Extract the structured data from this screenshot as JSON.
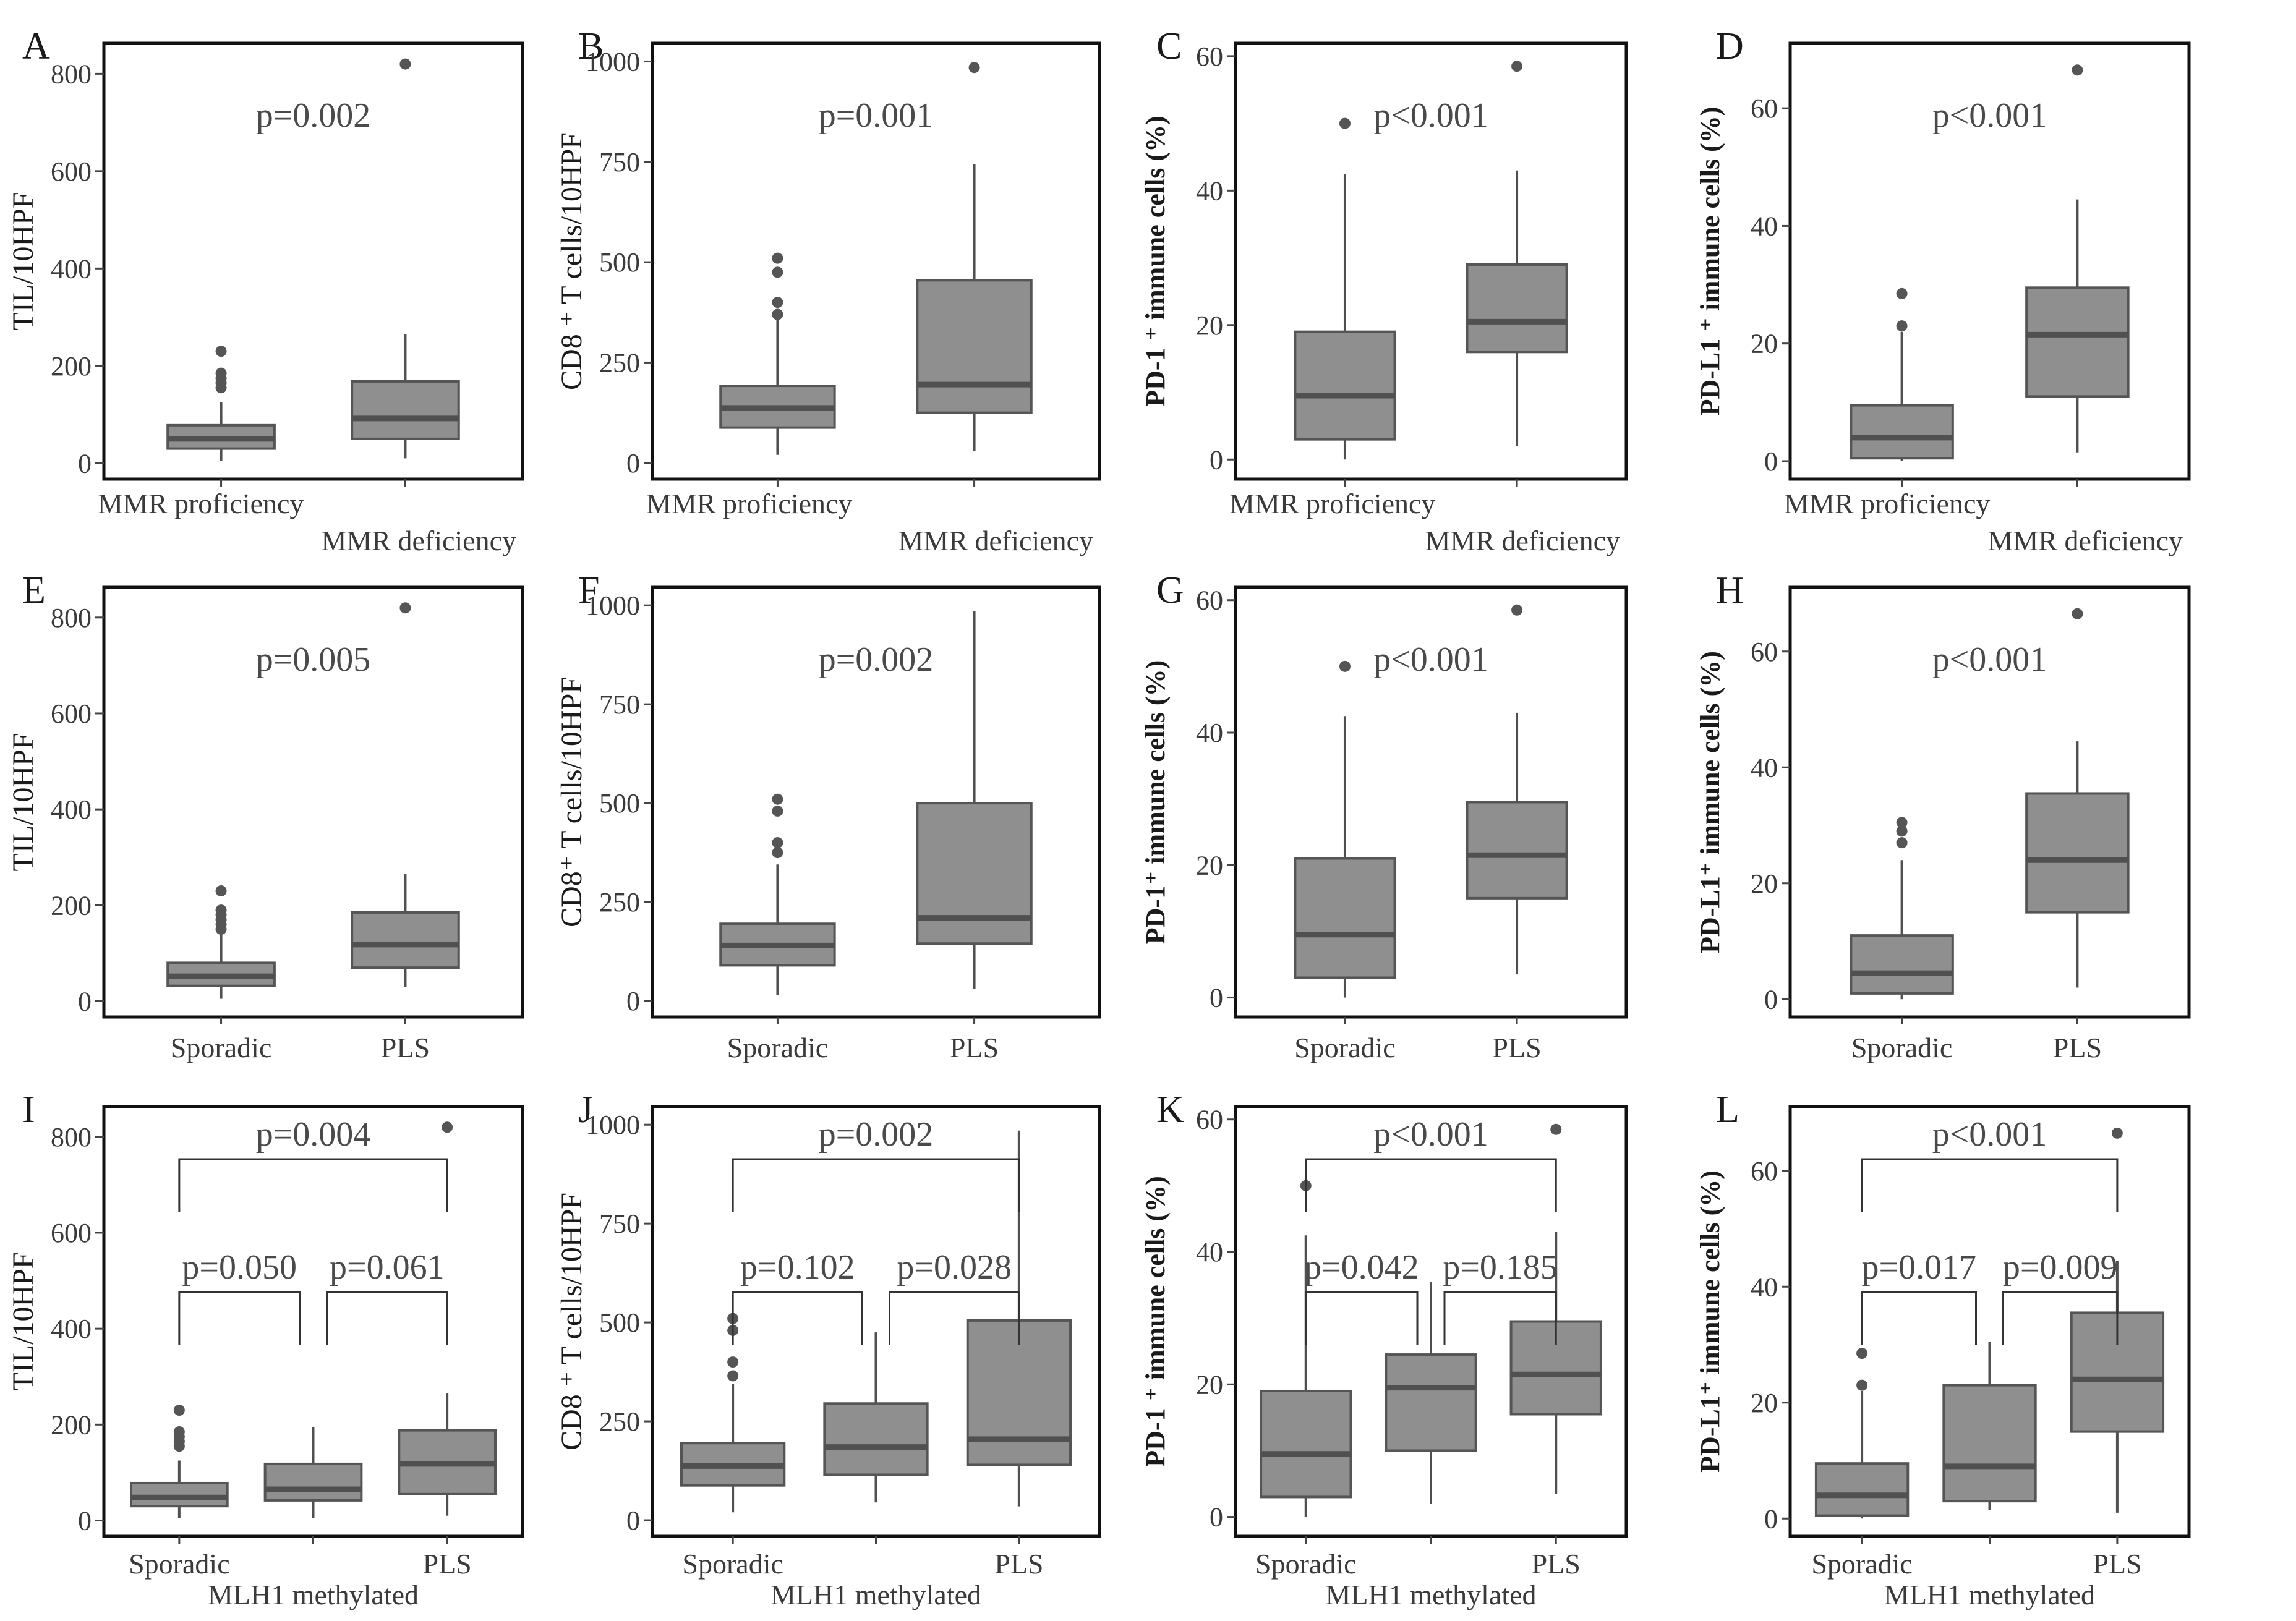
{
  "figure_colors": {
    "box_fill": "#8f8f8f",
    "box_stroke": "#555555",
    "median": "#505050",
    "whisker": "#505050",
    "outlier": "#555555",
    "frame": "#111111",
    "bracket": "#333333"
  },
  "chart_data": [
    {
      "panel": "A",
      "type": "box",
      "ylabel": "TIL/10HPF",
      "ylim": [
        -20,
        850
      ],
      "yticks": [
        0,
        200,
        400,
        600,
        800
      ],
      "categories": [
        "MMR proficiency",
        "MMR deficiency"
      ],
      "boxes": [
        {
          "low": 5,
          "q1": 30,
          "median": 50,
          "q3": 78,
          "high": 125,
          "outliers": [
            155,
            165,
            175,
            185,
            230
          ]
        },
        {
          "low": 10,
          "q1": 50,
          "median": 92,
          "q3": 168,
          "high": 265,
          "outliers": [
            820
          ]
        }
      ],
      "pvalues": [
        {
          "text": "p=0.002"
        }
      ]
    },
    {
      "panel": "B",
      "type": "box",
      "ylabel": "CD8 ⁺ T cells/10HPF",
      "ylim": [
        -25,
        1030
      ],
      "yticks": [
        0,
        250,
        500,
        750,
        1000
      ],
      "categories": [
        "MMR proficiency",
        "MMR deficiency"
      ],
      "boxes": [
        {
          "low": 20,
          "q1": 88,
          "median": 137,
          "q3": 192,
          "high": 360,
          "outliers": [
            370,
            400,
            475,
            510
          ]
        },
        {
          "low": 30,
          "q1": 125,
          "median": 195,
          "q3": 455,
          "high": 745,
          "outliers": [
            985
          ]
        }
      ],
      "pvalues": [
        {
          "text": "p=0.001"
        }
      ]
    },
    {
      "panel": "C",
      "type": "box",
      "ylabel": "PD-1 ⁺ immune cells (%)",
      "ylim": [
        -2,
        61
      ],
      "yticks": [
        0,
        20,
        40,
        60
      ],
      "categories": [
        "MMR proficiency",
        "MMR deficiency"
      ],
      "boxes": [
        {
          "low": 0,
          "q1": 3,
          "median": 9.5,
          "q3": 19,
          "high": 42.5,
          "outliers": [
            50
          ]
        },
        {
          "low": 2,
          "q1": 16,
          "median": 20.5,
          "q3": 29,
          "high": 43,
          "outliers": [
            58.5
          ]
        }
      ],
      "pvalues": [
        {
          "text": "p<0.001"
        }
      ]
    },
    {
      "panel": "D",
      "type": "box",
      "ylabel": "PD-L1 ⁺ immune cells (%)",
      "ylim": [
        -2,
        70
      ],
      "yticks": [
        0,
        20,
        40,
        60
      ],
      "categories": [
        "MMR proficiency",
        "MMR deficiency"
      ],
      "boxes": [
        {
          "low": 0,
          "q1": 0.5,
          "median": 4,
          "q3": 9.5,
          "high": 22,
          "outliers": [
            23,
            28.5
          ]
        },
        {
          "low": 1.5,
          "q1": 11,
          "median": 21.5,
          "q3": 29.5,
          "high": 44.5,
          "outliers": [
            66.5
          ]
        }
      ],
      "pvalues": [
        {
          "text": "p<0.001"
        }
      ]
    },
    {
      "panel": "E",
      "type": "box",
      "ylabel": "TIL/10HPF",
      "ylim": [
        -20,
        850
      ],
      "yticks": [
        0,
        200,
        400,
        600,
        800
      ],
      "categories": [
        "Sporadic",
        "PLS"
      ],
      "boxes": [
        {
          "low": 5,
          "q1": 32,
          "median": 52,
          "q3": 80,
          "high": 140,
          "outliers": [
            150,
            160,
            170,
            180,
            190,
            230
          ]
        },
        {
          "low": 30,
          "q1": 70,
          "median": 118,
          "q3": 185,
          "high": 265,
          "outliers": [
            820
          ]
        }
      ],
      "pvalues": [
        {
          "text": "p=0.005"
        }
      ]
    },
    {
      "panel": "F",
      "type": "box",
      "ylabel": "CD8⁺ T cells/10HPF",
      "ylim": [
        -25,
        1030
      ],
      "yticks": [
        0,
        250,
        500,
        750,
        1000
      ],
      "categories": [
        "Sporadic",
        "PLS"
      ],
      "boxes": [
        {
          "low": 15,
          "q1": 90,
          "median": 140,
          "q3": 195,
          "high": 345,
          "outliers": [
            375,
            400,
            480,
            510
          ]
        },
        {
          "low": 30,
          "q1": 145,
          "median": 210,
          "q3": 500,
          "high": 985,
          "outliers": []
        }
      ],
      "pvalues": [
        {
          "text": "p=0.002"
        }
      ]
    },
    {
      "panel": "G",
      "type": "box",
      "ylabel": "PD-1⁺ immune cells (%)",
      "ylim": [
        -2,
        61
      ],
      "yticks": [
        0,
        20,
        40,
        60
      ],
      "categories": [
        "Sporadic",
        "PLS"
      ],
      "boxes": [
        {
          "low": 0,
          "q1": 3,
          "median": 9.5,
          "q3": 21,
          "high": 42.5,
          "outliers": [
            50
          ]
        },
        {
          "low": 3.5,
          "q1": 15,
          "median": 21.5,
          "q3": 29.5,
          "high": 43,
          "outliers": [
            58.5
          ]
        }
      ],
      "pvalues": [
        {
          "text": "p<0.001"
        }
      ]
    },
    {
      "panel": "H",
      "type": "box",
      "ylabel": "PD-L1⁺ immune cells (%)",
      "ylim": [
        -2,
        70
      ],
      "yticks": [
        0,
        20,
        40,
        60
      ],
      "categories": [
        "Sporadic",
        "PLS"
      ],
      "boxes": [
        {
          "low": 0,
          "q1": 1,
          "median": 4.5,
          "q3": 11,
          "high": 24,
          "outliers": [
            27,
            29,
            30.5
          ]
        },
        {
          "low": 2,
          "q1": 15,
          "median": 24,
          "q3": 35.5,
          "high": 44.5,
          "outliers": [
            66.5
          ]
        }
      ],
      "pvalues": [
        {
          "text": "p<0.001"
        }
      ]
    },
    {
      "panel": "I",
      "type": "box",
      "ylabel": "TIL/10HPF",
      "ylim": [
        -20,
        850
      ],
      "yticks": [
        0,
        200,
        400,
        600,
        800
      ],
      "categories": [
        "Sporadic",
        "",
        "PLS"
      ],
      "group_label": "MLH1 methylated",
      "boxes": [
        {
          "low": 5,
          "q1": 30,
          "median": 48,
          "q3": 78,
          "high": 125,
          "outliers": [
            155,
            165,
            175,
            185,
            230
          ]
        },
        {
          "low": 5,
          "q1": 42,
          "median": 65,
          "q3": 118,
          "high": 195,
          "outliers": []
        },
        {
          "low": 10,
          "q1": 55,
          "median": 118,
          "q3": 188,
          "high": 265,
          "outliers": [
            820
          ]
        }
      ],
      "pvalues": [
        {
          "text": "p=0.004",
          "from": 0,
          "to": 2,
          "level": 2
        },
        {
          "text": "p=0.050",
          "from": 0,
          "to": 1,
          "level": 1
        },
        {
          "text": "p=0.061",
          "from": 1,
          "to": 2,
          "level": 1
        }
      ]
    },
    {
      "panel": "J",
      "type": "box",
      "ylabel": "CD8 ⁺ T cells/10HPF",
      "ylim": [
        -25,
        1030
      ],
      "yticks": [
        0,
        250,
        500,
        750,
        1000
      ],
      "categories": [
        "Sporadic",
        "",
        "PLS"
      ],
      "group_label": "MLH1 methylated",
      "boxes": [
        {
          "low": 20,
          "q1": 88,
          "median": 137,
          "q3": 195,
          "high": 345,
          "outliers": [
            365,
            400,
            480,
            510
          ]
        },
        {
          "low": 45,
          "q1": 115,
          "median": 185,
          "q3": 295,
          "high": 475,
          "outliers": []
        },
        {
          "low": 35,
          "q1": 140,
          "median": 205,
          "q3": 505,
          "high": 985,
          "outliers": []
        }
      ],
      "pvalues": [
        {
          "text": "p=0.002",
          "from": 0,
          "to": 2,
          "level": 2
        },
        {
          "text": "p=0.102",
          "from": 0,
          "to": 1,
          "level": 1
        },
        {
          "text": "p=0.028",
          "from": 1,
          "to": 2,
          "level": 1
        }
      ]
    },
    {
      "panel": "K",
      "type": "box",
      "ylabel": "PD-1 ⁺ immune cells (%)",
      "ylim": [
        -2,
        61
      ],
      "yticks": [
        0,
        20,
        40,
        60
      ],
      "categories": [
        "Sporadic",
        "",
        "PLS"
      ],
      "group_label": "MLH1 methylated",
      "boxes": [
        {
          "low": 0,
          "q1": 3,
          "median": 9.5,
          "q3": 19,
          "high": 42.5,
          "outliers": [
            50
          ]
        },
        {
          "low": 2,
          "q1": 10,
          "median": 19.5,
          "q3": 24.5,
          "high": 35.5,
          "outliers": []
        },
        {
          "low": 3.5,
          "q1": 15.5,
          "median": 21.5,
          "q3": 29.5,
          "high": 43,
          "outliers": [
            58.5
          ]
        }
      ],
      "pvalues": [
        {
          "text": "p<0.001",
          "from": 0,
          "to": 2,
          "level": 2
        },
        {
          "text": "p=0.042",
          "from": 0,
          "to": 1,
          "level": 1
        },
        {
          "text": "p=0.185",
          "from": 1,
          "to": 2,
          "level": 1
        }
      ]
    },
    {
      "panel": "L",
      "type": "box",
      "ylabel": "PD-L1⁺ immune cells (%)",
      "ylim": [
        -2,
        70
      ],
      "yticks": [
        0,
        20,
        40,
        60
      ],
      "categories": [
        "Sporadic",
        "",
        "PLS"
      ],
      "group_label": "MLH1 methylated",
      "boxes": [
        {
          "low": 0,
          "q1": 0.5,
          "median": 4,
          "q3": 9.5,
          "high": 22,
          "outliers": [
            23,
            28.5
          ]
        },
        {
          "low": 1.5,
          "q1": 3,
          "median": 9,
          "q3": 23,
          "high": 30.5,
          "outliers": []
        },
        {
          "low": 1,
          "q1": 15,
          "median": 24,
          "q3": 35.5,
          "high": 44.5,
          "outliers": [
            66.5
          ]
        }
      ],
      "pvalues": [
        {
          "text": "p<0.001",
          "from": 0,
          "to": 2,
          "level": 2
        },
        {
          "text": "p=0.017",
          "from": 0,
          "to": 1,
          "level": 1
        },
        {
          "text": "p=0.009",
          "from": 1,
          "to": 2,
          "level": 1
        }
      ]
    }
  ]
}
